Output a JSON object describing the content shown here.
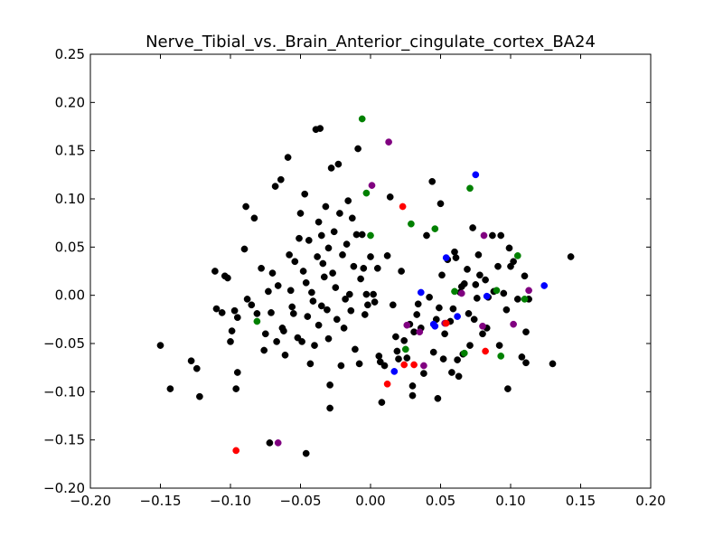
{
  "chart_data": {
    "type": "scatter",
    "title": "Nerve_Tibial_vs._Brain_Anterior_cingulate_cortex_BA24",
    "xlabel": "",
    "ylabel": "",
    "xlim": [
      -0.2,
      0.2
    ],
    "ylim": [
      -0.2,
      0.25
    ],
    "x_ticks": [
      "−0.20",
      "−0.15",
      "−0.10",
      "−0.05",
      "0.00",
      "0.05",
      "0.10",
      "0.15",
      "0.20"
    ],
    "y_ticks": [
      "−0.20",
      "−0.15",
      "−0.10",
      "−0.05",
      "0.00",
      "0.05",
      "0.10",
      "0.15",
      "0.20",
      "0.25"
    ],
    "grid": false,
    "series": [
      {
        "color": "#000000",
        "points": [
          [
            -0.15,
            -0.052
          ],
          [
            -0.143,
            -0.097
          ],
          [
            -0.128,
            -0.068
          ],
          [
            -0.124,
            -0.076
          ],
          [
            -0.122,
            -0.105
          ],
          [
            -0.111,
            0.025
          ],
          [
            -0.11,
            -0.014
          ],
          [
            -0.106,
            -0.018
          ],
          [
            -0.104,
            0.02
          ],
          [
            -0.102,
            0.018
          ],
          [
            -0.1,
            -0.048
          ],
          [
            -0.099,
            -0.037
          ],
          [
            -0.097,
            -0.016
          ],
          [
            -0.096,
            -0.097
          ],
          [
            -0.095,
            -0.08
          ],
          [
            -0.095,
            -0.023
          ],
          [
            -0.09,
            0.048
          ],
          [
            -0.089,
            0.092
          ],
          [
            -0.088,
            -0.004
          ],
          [
            -0.085,
            -0.01
          ],
          [
            -0.083,
            0.08
          ],
          [
            -0.081,
            -0.019
          ],
          [
            -0.078,
            0.028
          ],
          [
            -0.076,
            -0.057
          ],
          [
            -0.075,
            -0.04
          ],
          [
            -0.073,
            0.004
          ],
          [
            -0.071,
            -0.018
          ],
          [
            -0.07,
            0.023
          ],
          [
            -0.068,
            0.113
          ],
          [
            -0.067,
            -0.048
          ],
          [
            -0.066,
            0.01
          ],
          [
            -0.064,
            0.12
          ],
          [
            -0.063,
            -0.034
          ],
          [
            -0.062,
            -0.037
          ],
          [
            -0.061,
            -0.062
          ],
          [
            -0.059,
            0.143
          ],
          [
            -0.058,
            0.042
          ],
          [
            -0.057,
            0.005
          ],
          [
            -0.056,
            -0.012
          ],
          [
            -0.055,
            -0.019
          ],
          [
            -0.054,
            0.035
          ],
          [
            -0.052,
            -0.044
          ],
          [
            -0.051,
            0.059
          ],
          [
            -0.05,
            0.085
          ],
          [
            -0.049,
            -0.048
          ],
          [
            -0.048,
            0.025
          ],
          [
            -0.047,
            0.105
          ],
          [
            -0.046,
            0.013
          ],
          [
            -0.045,
            -0.022
          ],
          [
            -0.044,
            0.057
          ],
          [
            -0.043,
            -0.071
          ],
          [
            -0.042,
            0.003
          ],
          [
            -0.041,
            -0.006
          ],
          [
            -0.04,
            -0.052
          ],
          [
            -0.039,
            0.172
          ],
          [
            -0.038,
            0.04
          ],
          [
            -0.037,
            0.076
          ],
          [
            -0.037,
            -0.031
          ],
          [
            -0.036,
            0.173
          ],
          [
            -0.035,
            0.062
          ],
          [
            -0.035,
            -0.011
          ],
          [
            -0.034,
            0.033
          ],
          [
            -0.033,
            0.019
          ],
          [
            -0.032,
            0.092
          ],
          [
            -0.031,
            -0.015
          ],
          [
            -0.03,
            0.049
          ],
          [
            -0.03,
            -0.045
          ],
          [
            -0.029,
            -0.093
          ],
          [
            -0.029,
            -0.117
          ],
          [
            -0.028,
            0.132
          ],
          [
            -0.027,
            0.023
          ],
          [
            -0.026,
            0.066
          ],
          [
            -0.025,
            0.008
          ],
          [
            -0.024,
            -0.025
          ],
          [
            -0.023,
            0.136
          ],
          [
            -0.022,
            0.085
          ],
          [
            -0.021,
            -0.073
          ],
          [
            -0.02,
            0.042
          ],
          [
            -0.019,
            -0.034
          ],
          [
            -0.018,
            -0.004
          ],
          [
            -0.017,
            0.053
          ],
          [
            -0.016,
            0.098
          ],
          [
            -0.015,
            0.001
          ],
          [
            -0.014,
            -0.016
          ],
          [
            -0.013,
            0.08
          ],
          [
            -0.012,
            0.03
          ],
          [
            -0.011,
            -0.056
          ],
          [
            -0.01,
            0.063
          ],
          [
            -0.009,
            0.152
          ],
          [
            -0.008,
            -0.071
          ],
          [
            -0.007,
            0.017
          ],
          [
            -0.006,
            0.063
          ],
          [
            -0.005,
            0.028
          ],
          [
            -0.004,
            -0.02
          ],
          [
            -0.003,
            0.001
          ],
          [
            -0.002,
            -0.01
          ],
          [
            0.0,
            0.04
          ],
          [
            0.002,
            0.001
          ],
          [
            0.003,
            -0.007
          ],
          [
            0.005,
            0.028
          ],
          [
            0.006,
            -0.063
          ],
          [
            0.007,
            -0.069
          ],
          [
            0.008,
            -0.111
          ],
          [
            0.01,
            -0.073
          ],
          [
            0.012,
            0.041
          ],
          [
            0.014,
            0.102
          ],
          [
            0.016,
            -0.01
          ],
          [
            0.018,
            -0.043
          ],
          [
            0.019,
            -0.058
          ],
          [
            0.02,
            -0.066
          ],
          [
            0.022,
            0.025
          ],
          [
            0.024,
            -0.047
          ],
          [
            0.026,
            -0.065
          ],
          [
            0.028,
            -0.03
          ],
          [
            0.03,
            -0.094
          ],
          [
            0.03,
            -0.104
          ],
          [
            0.031,
            -0.038
          ],
          [
            0.033,
            -0.02
          ],
          [
            0.034,
            -0.009
          ],
          [
            0.036,
            -0.034
          ],
          [
            0.038,
            -0.081
          ],
          [
            0.04,
            0.062
          ],
          [
            0.042,
            -0.002
          ],
          [
            0.044,
            0.118
          ],
          [
            0.045,
            -0.059
          ],
          [
            0.047,
            -0.025
          ],
          [
            0.048,
            -0.107
          ],
          [
            0.049,
            -0.013
          ],
          [
            0.05,
            0.095
          ],
          [
            0.051,
            0.021
          ],
          [
            0.052,
            -0.066
          ],
          [
            0.053,
            -0.04
          ],
          [
            0.055,
            0.037
          ],
          [
            0.057,
            -0.027
          ],
          [
            0.058,
            -0.08
          ],
          [
            0.059,
            -0.014
          ],
          [
            0.06,
            0.045
          ],
          [
            0.061,
            0.039
          ],
          [
            0.062,
            -0.067
          ],
          [
            0.063,
            -0.084
          ],
          [
            0.064,
            0.003
          ],
          [
            0.065,
            0.009
          ],
          [
            0.066,
            -0.061
          ],
          [
            0.067,
            0.012
          ],
          [
            0.069,
            0.027
          ],
          [
            0.07,
            -0.019
          ],
          [
            0.071,
            -0.052
          ],
          [
            0.073,
            0.07
          ],
          [
            0.074,
            -0.025
          ],
          [
            0.075,
            0.011
          ],
          [
            0.076,
            -0.003
          ],
          [
            0.077,
            0.042
          ],
          [
            0.078,
            0.021
          ],
          [
            0.08,
            -0.04
          ],
          [
            0.082,
            0.016
          ],
          [
            0.083,
            -0.034
          ],
          [
            0.084,
            -0.002
          ],
          [
            0.087,
            0.062
          ],
          [
            0.088,
            0.004
          ],
          [
            0.091,
            0.03
          ],
          [
            0.092,
            -0.052
          ],
          [
            0.093,
            0.062
          ],
          [
            0.095,
            0.002
          ],
          [
            0.097,
            -0.015
          ],
          [
            0.098,
            -0.097
          ],
          [
            0.099,
            0.049
          ],
          [
            0.1,
            0.03
          ],
          [
            0.102,
            0.035
          ],
          [
            0.105,
            -0.004
          ],
          [
            0.108,
            -0.064
          ],
          [
            0.11,
            0.02
          ],
          [
            0.111,
            -0.038
          ],
          [
            0.111,
            -0.07
          ],
          [
            0.113,
            -0.004
          ],
          [
            0.13,
            -0.071
          ],
          [
            0.143,
            0.04
          ],
          [
            -0.072,
            -0.153
          ],
          [
            -0.046,
            -0.164
          ]
        ]
      },
      {
        "color": "#008000",
        "points": [
          [
            -0.006,
            0.183
          ],
          [
            -0.003,
            0.106
          ],
          [
            0.0,
            0.062
          ],
          [
            0.029,
            0.074
          ],
          [
            0.046,
            0.069
          ],
          [
            0.071,
            0.111
          ],
          [
            0.105,
            0.041
          ],
          [
            0.06,
            0.004
          ],
          [
            0.09,
            0.005
          ],
          [
            0.11,
            -0.004
          ],
          [
            -0.081,
            -0.027
          ],
          [
            0.025,
            -0.056
          ],
          [
            0.067,
            -0.06
          ],
          [
            0.093,
            -0.063
          ]
        ]
      },
      {
        "color": "#0000ff",
        "points": [
          [
            0.075,
            0.125
          ],
          [
            0.054,
            0.039
          ],
          [
            0.036,
            0.003
          ],
          [
            0.124,
            0.01
          ],
          [
            0.083,
            -0.001
          ],
          [
            0.062,
            -0.022
          ],
          [
            0.046,
            -0.032
          ],
          [
            0.045,
            -0.03
          ],
          [
            0.017,
            -0.079
          ]
        ]
      },
      {
        "color": "#800080",
        "points": [
          [
            0.013,
            0.159
          ],
          [
            0.001,
            0.114
          ],
          [
            0.081,
            0.062
          ],
          [
            0.113,
            0.005
          ],
          [
            0.065,
            0.002
          ],
          [
            0.026,
            -0.031
          ],
          [
            0.035,
            -0.038
          ],
          [
            0.053,
            -0.029
          ],
          [
            0.08,
            -0.032
          ],
          [
            0.102,
            -0.03
          ],
          [
            0.038,
            -0.073
          ],
          [
            -0.066,
            -0.153
          ]
        ]
      },
      {
        "color": "#ff0000",
        "points": [
          [
            0.023,
            0.092
          ],
          [
            0.054,
            -0.029
          ],
          [
            0.082,
            -0.058
          ],
          [
            0.024,
            -0.072
          ],
          [
            0.031,
            -0.072
          ],
          [
            0.012,
            -0.092
          ],
          [
            -0.096,
            -0.161
          ]
        ]
      }
    ]
  }
}
